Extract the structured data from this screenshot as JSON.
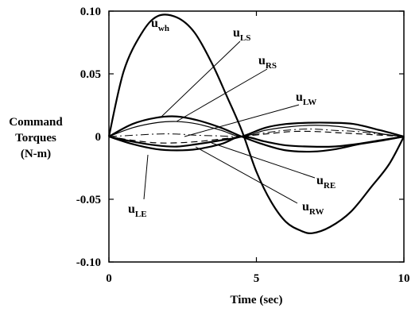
{
  "chart_data": {
    "type": "line",
    "xlabel": "Time (sec)",
    "ylabel_lines": [
      "Command",
      "Torques",
      "(N-m)"
    ],
    "xlim": [
      0,
      10
    ],
    "ylim": [
      -0.1,
      0.1
    ],
    "x_ticks": [
      0,
      5,
      10
    ],
    "x_tick_labels": [
      "0",
      "5",
      "10"
    ],
    "y_ticks": [
      0.1,
      0.05,
      0,
      -0.05,
      -0.1
    ],
    "y_tick_labels": [
      "0.10",
      "0.05",
      "0",
      "-0.05",
      "-0.10"
    ],
    "grid": false,
    "legend": "none",
    "series": [
      {
        "name": "u_wh",
        "label_main": "u",
        "label_sub": "wh",
        "style": "solid-bold",
        "x": [
          0,
          0.5,
          1.1,
          1.65,
          2.3,
          2.9,
          3.5,
          4.0,
          4.5,
          5.0,
          5.5,
          6.0,
          6.5,
          6.9,
          7.5,
          8.2,
          8.9,
          9.5,
          10
        ],
        "y": [
          0,
          0.052,
          0.082,
          0.096,
          0.095,
          0.083,
          0.058,
          0.032,
          0.005,
          -0.028,
          -0.052,
          -0.068,
          -0.075,
          -0.077,
          -0.072,
          -0.06,
          -0.04,
          -0.022,
          0
        ]
      },
      {
        "name": "u_LS",
        "label_main": "u",
        "label_sub": "LS",
        "style": "solid-bold",
        "x": [
          0,
          0.8,
          1.6,
          2.3,
          3.0,
          3.8,
          4.5,
          5.2,
          6.0,
          6.9,
          7.7,
          8.5,
          9.3,
          10
        ],
        "y": [
          0,
          0.01,
          0.015,
          0.016,
          0.013,
          0.007,
          0,
          -0.006,
          -0.011,
          -0.012,
          -0.01,
          -0.006,
          -0.003,
          0
        ]
      },
      {
        "name": "u_RS",
        "label_main": "u",
        "label_sub": "RS",
        "style": "solid",
        "x": [
          0,
          0.8,
          1.6,
          2.3,
          3.0,
          3.8,
          4.5,
          5.3,
          6.2,
          7.0,
          7.8,
          8.6,
          9.3,
          10
        ],
        "y": [
          0,
          0.007,
          0.011,
          0.012,
          0.01,
          0.005,
          0,
          0.005,
          0.008,
          0.009,
          0.008,
          0.005,
          0.002,
          0
        ]
      },
      {
        "name": "u_LW",
        "label_main": "u",
        "label_sub": "LW",
        "style": "solid-bold",
        "x": [
          0,
          0.8,
          1.6,
          2.3,
          3.0,
          3.8,
          4.5,
          5.3,
          6.0,
          6.8,
          7.5,
          8.3,
          9.2,
          10
        ],
        "y": [
          0,
          -0.004,
          -0.007,
          -0.008,
          -0.006,
          -0.003,
          0,
          0.007,
          0.01,
          0.011,
          0.011,
          0.01,
          0.005,
          0
        ]
      },
      {
        "name": "u_RE",
        "label_main": "u",
        "label_sub": "RE",
        "style": "dashed",
        "x": [
          0,
          0.8,
          1.6,
          2.3,
          3.0,
          3.8,
          4.5,
          5.3,
          6.2,
          7.0,
          7.8,
          8.6,
          9.3,
          10
        ],
        "y": [
          0,
          -0.003,
          -0.005,
          -0.005,
          -0.004,
          -0.002,
          0,
          0.002,
          0.004,
          0.004,
          0.003,
          0.002,
          0.001,
          0
        ]
      },
      {
        "name": "u_RW",
        "label_main": "u",
        "label_sub": "RW",
        "style": "dash-dot",
        "x": [
          0,
          0.8,
          1.6,
          2.3,
          3.0,
          3.8,
          4.5,
          5.3,
          6.0,
          6.8,
          7.6,
          8.4,
          9.2,
          10
        ],
        "y": [
          0,
          0.001,
          0.002,
          0.002,
          0.001,
          0.0005,
          0,
          0.003,
          0.005,
          0.006,
          0.005,
          0.004,
          0.002,
          0
        ]
      },
      {
        "name": "u_LE",
        "label_main": "u",
        "label_sub": "LE",
        "style": "solid-bold",
        "x": [
          0,
          0.8,
          1.6,
          2.3,
          3.0,
          3.8,
          4.5,
          5.3,
          6.0,
          6.8,
          7.6,
          8.4,
          9.2,
          10
        ],
        "y": [
          0,
          -0.006,
          -0.01,
          -0.011,
          -0.01,
          -0.006,
          0,
          -0.004,
          -0.007,
          -0.008,
          -0.008,
          -0.006,
          -0.003,
          0
        ]
      }
    ]
  }
}
